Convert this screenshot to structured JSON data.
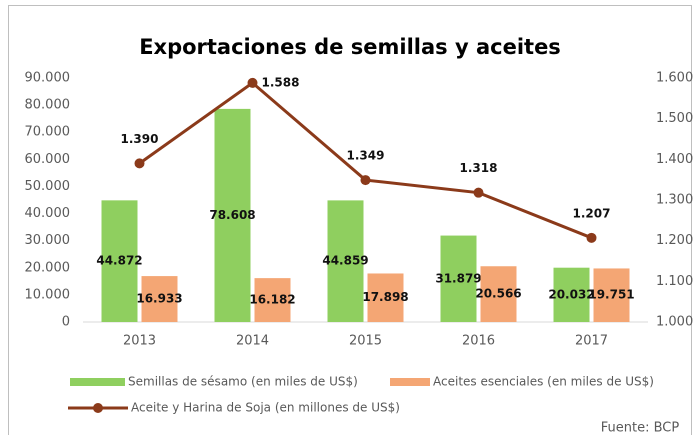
{
  "chart_data": {
    "type": "bar",
    "title": "Exportaciones de semillas y aceites",
    "categories": [
      "2013",
      "2014",
      "2015",
      "2016",
      "2017"
    ],
    "series": [
      {
        "name": "Semillas de sésamo (en miles de US$)",
        "color": "#8fcf5f",
        "values": [
          44872,
          78608,
          44859,
          31879,
          20032
        ],
        "value_labels": [
          "44.872",
          "78.608",
          "44.859",
          "31.879",
          "20.032"
        ]
      },
      {
        "name": "Aceites esenciales (en miles de US$)",
        "color": "#f4a674",
        "values": [
          16933,
          16182,
          17898,
          20566,
          19751
        ],
        "value_labels": [
          "16.933",
          "16.182",
          "17.898",
          "20.566",
          "19.751"
        ]
      },
      {
        "name": "Aceite y Harina de Soja (en millones de US$)",
        "color": "#8b3a1a",
        "type": "line",
        "axis": "y2",
        "values": [
          1390,
          1588,
          1349,
          1318,
          1207
        ],
        "value_labels": [
          "1.390",
          "1.588",
          "1.349",
          "1.318",
          "1.207"
        ]
      }
    ],
    "ylim": [
      0,
      90000
    ],
    "yticks": [
      0,
      {
        "value": 10000,
        "label": "10.000"
      },
      {
        "value": 20000,
        "label": "20.000"
      },
      {
        "value": 30000,
        "label": "30.000"
      },
      {
        "value": 40000,
        "label": "40.000"
      },
      {
        "value": 50000,
        "label": "50.000"
      },
      {
        "value": 60000,
        "label": "60.000"
      },
      {
        "value": 70000,
        "label": "70.000"
      },
      {
        "value": 80000,
        "label": "80.000"
      },
      {
        "value": 90000,
        "label": "90.000"
      }
    ],
    "y2lim": [
      1000,
      1600
    ],
    "y2ticks": [
      {
        "value": 1000,
        "label": "1.000"
      },
      {
        "value": 1100,
        "label": "1.100"
      },
      {
        "value": 1200,
        "label": "1.200"
      },
      {
        "value": 1300,
        "label": "1.300"
      },
      {
        "value": 1400,
        "label": "1.400"
      },
      {
        "value": 1500,
        "label": "1.500"
      },
      {
        "value": 1600,
        "label": "1.600"
      }
    ],
    "grid": false,
    "legend": "bottom",
    "source": "Fuente: BCP"
  }
}
